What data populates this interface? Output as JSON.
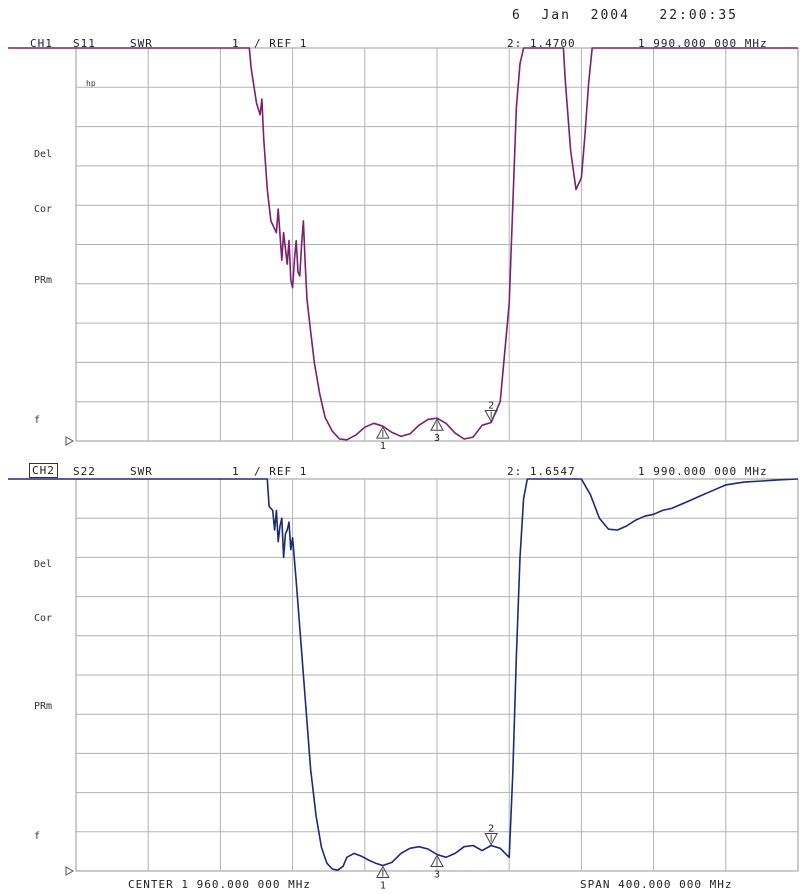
{
  "timestamp": "6  Jan  2004   22:00:35",
  "chart_data": [
    {
      "type": "line",
      "channel": "CH1",
      "param": "S11",
      "format": "SWR",
      "scale": "1",
      "ref": "/ REF 1",
      "marker_readout": "2: 1.4700",
      "marker_freq": "1 990.000 000 MHz",
      "annotations": [
        "hp",
        "Del",
        "Cor",
        "PRm",
        "f"
      ],
      "color": "#7b1f72",
      "xlim": [
        1760,
        2160
      ],
      "ylim": [
        1,
        11
      ],
      "x": [
        1760,
        1856,
        1857,
        1860,
        1862,
        1863,
        1864,
        1866,
        1868,
        1871,
        1872,
        1874,
        1875,
        1877,
        1878,
        1879,
        1880,
        1881,
        1882,
        1883,
        1884,
        1885,
        1886,
        1887,
        1888,
        1890,
        1892,
        1895,
        1898,
        1902,
        1906,
        1910,
        1915,
        1920,
        1925,
        1930,
        1935,
        1940,
        1945,
        1950,
        1955,
        1960,
        1965,
        1970,
        1975,
        1980,
        1985,
        1990,
        1995,
        2000,
        2002,
        2004,
        2006,
        2008,
        2010,
        2020,
        2030,
        2031,
        2034,
        2037,
        2040,
        2042,
        2044,
        2046,
        2048,
        2052,
        2056,
        2060,
        2160
      ],
      "y": [
        11,
        11,
        10.5,
        9.6,
        9.3,
        9.7,
        8.7,
        7.4,
        6.6,
        6.3,
        6.9,
        5.6,
        6.3,
        5.5,
        6.1,
        5.1,
        4.9,
        5.6,
        6.1,
        5.3,
        5.2,
        6.0,
        6.6,
        5.5,
        4.6,
        3.8,
        3.0,
        2.2,
        1.6,
        1.25,
        1.05,
        1.03,
        1.15,
        1.35,
        1.45,
        1.38,
        1.22,
        1.12,
        1.18,
        1.4,
        1.55,
        1.58,
        1.45,
        1.2,
        1.05,
        1.1,
        1.4,
        1.47,
        2.0,
        4.5,
        7.0,
        9.5,
        10.6,
        11,
        11,
        11,
        11,
        10.2,
        8.4,
        7.4,
        7.7,
        8.8,
        10.1,
        11,
        11,
        11,
        11,
        11,
        11
      ],
      "markers": [
        {
          "label": "1",
          "x": 1930,
          "dir": "up"
        },
        {
          "label": "3",
          "x": 1960,
          "dir": "up"
        },
        {
          "label": "2",
          "x": 1990,
          "dir": "down"
        }
      ]
    },
    {
      "type": "line",
      "channel": "CH2",
      "param": "S22",
      "format": "SWR",
      "scale": "1",
      "ref": "/ REF 1",
      "marker_readout": "2: 1.6547",
      "marker_freq": "1 990.000 000 MHz",
      "annotations": [
        "Del",
        "Cor",
        "PRm",
        "f"
      ],
      "color": "#1c2a7a",
      "xlim": [
        1760,
        2160
      ],
      "ylim": [
        1,
        11
      ],
      "x": [
        1760,
        1866,
        1867,
        1869,
        1870,
        1871,
        1872,
        1873,
        1874,
        1875,
        1876,
        1877,
        1878,
        1879,
        1880,
        1882,
        1884,
        1887,
        1890,
        1893,
        1896,
        1899,
        1902,
        1905,
        1908,
        1910,
        1914,
        1918,
        1922,
        1926,
        1930,
        1935,
        1940,
        1945,
        1950,
        1955,
        1960,
        1965,
        1970,
        1975,
        1980,
        1985,
        1990,
        1995,
        2000,
        2002,
        2004,
        2006,
        2008,
        2010,
        2020,
        2040,
        2045,
        2050,
        2055,
        2060,
        2065,
        2070,
        2075,
        2080,
        2085,
        2090,
        2095,
        2100,
        2105,
        2110,
        2115,
        2120,
        2130,
        2140,
        2150,
        2160
      ],
      "y": [
        11,
        11,
        10.3,
        10.2,
        9.7,
        10.2,
        9.4,
        9.8,
        10.0,
        9.0,
        9.6,
        9.7,
        9.9,
        9.2,
        9.5,
        8.4,
        7.2,
        5.4,
        3.6,
        2.4,
        1.6,
        1.2,
        1.05,
        1.02,
        1.12,
        1.35,
        1.45,
        1.38,
        1.28,
        1.2,
        1.14,
        1.22,
        1.45,
        1.58,
        1.62,
        1.56,
        1.42,
        1.35,
        1.45,
        1.62,
        1.65,
        1.52,
        1.65,
        1.58,
        1.35,
        3.5,
        6.5,
        9.0,
        10.5,
        11,
        11,
        11,
        10.6,
        10.0,
        9.72,
        9.7,
        9.8,
        9.95,
        10.05,
        10.1,
        10.2,
        10.25,
        10.35,
        10.45,
        10.55,
        10.65,
        10.75,
        10.85,
        10.92,
        10.95,
        10.98,
        11
      ],
      "markers": [
        {
          "label": "1",
          "x": 1930,
          "dir": "up"
        },
        {
          "label": "3",
          "x": 1960,
          "dir": "up"
        },
        {
          "label": "2",
          "x": 1990,
          "dir": "down"
        }
      ]
    }
  ],
  "footer": {
    "center": "CENTER 1 960.000 000 MHz",
    "span": "SPAN 400.000 000 MHz"
  }
}
